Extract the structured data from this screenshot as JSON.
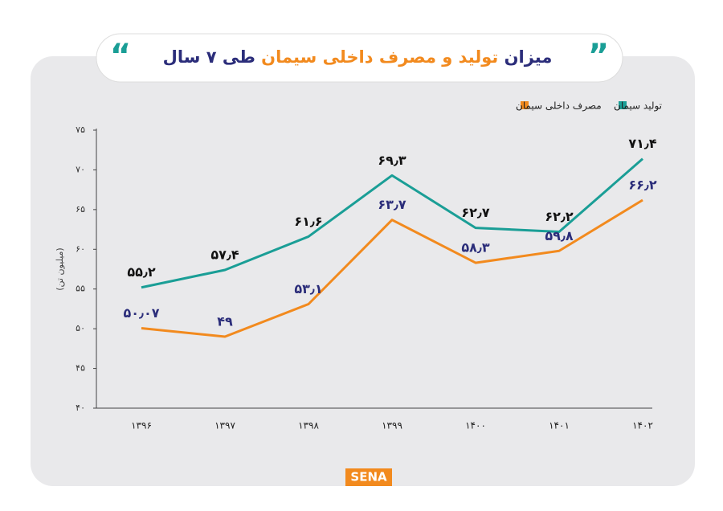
{
  "chart_data": {
    "type": "line",
    "title": [
      "میزان",
      "تولید و مصرف داخلی سیمان",
      "طی ۷ سال"
    ],
    "title_colors": [
      "#2b2d7a",
      "#f28a1e",
      "#2b2d7a"
    ],
    "y_label": "(میلیون تن)",
    "categories": [
      "۱۳۹۶",
      "۱۳۹۷",
      "۱۳۹۸",
      "۱۳۹۹",
      "۱۴۰۰",
      "۱۴۰۱",
      "۱۴۰۲"
    ],
    "series": [
      {
        "name": "تولید سیمان",
        "color": "#1a9e96",
        "label_color": "#111111",
        "values": [
          55.2,
          57.4,
          61.6,
          69.3,
          62.7,
          62.2,
          71.4
        ],
        "value_labels": [
          "۵۵٫۲",
          "۵۷٫۴",
          "۶۱٫۶",
          "۶۹٫۳",
          "۶۲٫۷",
          "۶۲٫۲",
          "۷۱٫۴"
        ]
      },
      {
        "name": "مصرف داخلی سیمان",
        "color": "#f28a1e",
        "label_color": "#2b2d7a",
        "values": [
          50.07,
          49,
          53.1,
          63.7,
          58.3,
          59.8,
          66.2
        ],
        "value_labels": [
          "۵۰٫۰۷",
          "۴۹",
          "۵۳٫۱",
          "۶۳٫۷",
          "۵۸٫۳",
          "۵۹٫۸",
          "۶۶٫۲"
        ]
      }
    ],
    "ylim": [
      40,
      75
    ],
    "yticks": [
      {
        "value": 40,
        "label": "۴۰"
      },
      {
        "value": 45,
        "label": "۴۵"
      },
      {
        "value": 50,
        "label": "۵۰"
      },
      {
        "value": 55,
        "label": "۵۵"
      },
      {
        "value": 60,
        "label": "۶۰"
      },
      {
        "value": 65,
        "label": "۶۵"
      },
      {
        "value": 70,
        "label": "۷۰"
      },
      {
        "value": 75,
        "label": "۷۵"
      }
    ],
    "legend": "top-right",
    "logo": "SENA"
  }
}
